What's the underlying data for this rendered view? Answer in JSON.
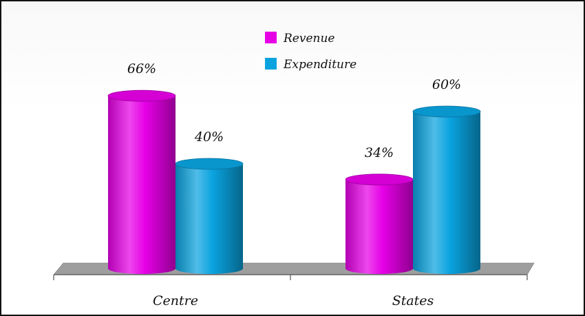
{
  "chart_data": {
    "type": "bar",
    "style": "3d-cylinder",
    "categories": [
      "Centre",
      "States"
    ],
    "series": [
      {
        "name": "Revenue",
        "values": [
          66,
          34
        ],
        "labels": [
          "66%",
          "34%"
        ],
        "color": "#e600e6"
      },
      {
        "name": "Expenditure",
        "values": [
          40,
          60
        ],
        "labels": [
          "40%",
          "60%"
        ],
        "color": "#0aa3df"
      }
    ],
    "ylim": [
      0,
      100
    ],
    "grid": false,
    "legend_position": "top-center",
    "floor_color": "#9e9e9e"
  }
}
